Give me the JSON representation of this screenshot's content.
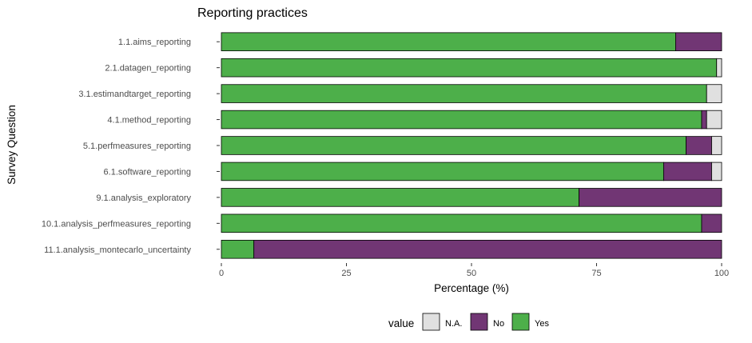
{
  "chart_data": {
    "type": "bar",
    "orientation": "horizontal",
    "stacked": true,
    "title": "Reporting practices",
    "xlabel": "Percentage (%)",
    "ylabel": "Survey Question",
    "xlim": [
      0,
      100
    ],
    "xticks": [
      "0",
      "25",
      "50",
      "75",
      "100"
    ],
    "grid": false,
    "legend_position": "bottom",
    "legend_title": "value",
    "categories": [
      "1.1.aims_reporting",
      "2.1.datagen_reporting",
      "3.1.estimandtarget_reporting",
      "4.1.method_reporting",
      "5.1.perfmeasures_reporting",
      "6.1.software_reporting",
      "9.1.analysis_exploratory",
      "10.1.analysis_perfmeasures_reporting",
      "11.1.analysis_montecarlo_uncertainty"
    ],
    "series": [
      {
        "name": "Yes",
        "color": "#4daf4a",
        "values": [
          90.8,
          99.0,
          97.0,
          96.0,
          92.9,
          88.4,
          71.5,
          96.0,
          6.5
        ]
      },
      {
        "name": "No",
        "color": "#713674",
        "values": [
          9.2,
          0,
          0,
          1.0,
          5.1,
          9.6,
          28.5,
          4.0,
          93.5
        ]
      },
      {
        "name": "N.A.",
        "color": "#e0e0e0",
        "values": [
          0,
          1.0,
          3.0,
          3.0,
          2.0,
          2.0,
          0,
          0,
          0
        ]
      }
    ],
    "legend_order": [
      "N.A.",
      "No",
      "Yes"
    ]
  }
}
